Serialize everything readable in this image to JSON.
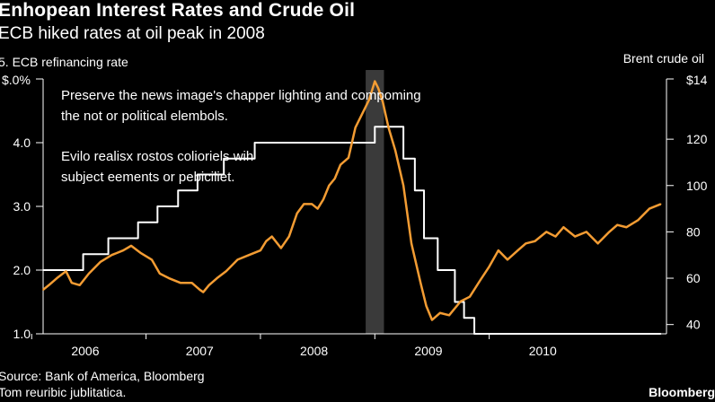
{
  "header": {
    "title": "Enhopean Interest Rates and Crude Oil",
    "subtitle": "ECB hiked rates at oil peak in 2008",
    "left_axis_label": "5. ECB refinancing rate",
    "right_axis_label": "Brent crude oil"
  },
  "annotations": {
    "line1a": "Preserve the news image's chapper lighting  and compoming",
    "line1b": "the not or political elembols.",
    "line2a": "Evilo realisx rostos colioriels wih",
    "line2b": "subject eements or pebiciliet."
  },
  "footer": {
    "source_line1": "Source: Bank of America, Bloomberg",
    "source_line2": "Tom reuribic jublitatica.",
    "brand": "Bloomberg"
  },
  "chart_data": {
    "type": "line",
    "title": "Enhopean Interest Rates and Crude Oil",
    "subtitle": "ECB hiked rates at oil peak in 2008",
    "x_ticks": [
      "2006",
      "2007",
      "2008",
      "2009",
      "2010"
    ],
    "xlim": [
      2005.6,
      2011.05
    ],
    "left_axis": {
      "label": "5. ECB refinancing rate",
      "ylim": [
        1.0,
        5.0
      ],
      "tick_values": [
        1.0,
        2.0,
        3.0,
        4.0
      ],
      "tick_labels": [
        "1.0",
        "2.0",
        "3.0",
        "4.0"
      ],
      "top_tick_label": "$.0%"
    },
    "right_axis": {
      "label": "Brent crude oil",
      "ylim": [
        36,
        146
      ],
      "tick_values": [
        40,
        60,
        80,
        100,
        120
      ],
      "tick_labels": [
        "40",
        "60",
        "80",
        "100",
        "120"
      ],
      "top_tick_label": "$14"
    },
    "shaded_period": {
      "start": 2008.42,
      "end": 2008.58,
      "color": "#3a3a3a"
    },
    "series": [
      {
        "name": "ECB refinancing rate",
        "axis": "left",
        "color": "#ffffff",
        "step": true,
        "x": [
          2005.6,
          2005.95,
          2006.17,
          2006.43,
          2006.6,
          2006.78,
          2006.95,
          2007.18,
          2007.45,
          2008.5,
          2008.75,
          2008.85,
          2008.93,
          2009.05,
          2009.2,
          2009.28,
          2009.37,
          2011.0
        ],
        "values": [
          2.0,
          2.25,
          2.5,
          2.75,
          3.0,
          3.25,
          3.5,
          3.75,
          4.0,
          4.25,
          3.75,
          3.25,
          2.5,
          2.0,
          1.5,
          1.25,
          1.0,
          1.0
        ]
      },
      {
        "name": "Brent crude oil",
        "axis": "right",
        "color": "#f39c33",
        "step": false,
        "x": [
          2005.6,
          2005.65,
          2005.72,
          2005.8,
          2005.85,
          2005.92,
          2006.0,
          2006.1,
          2006.2,
          2006.3,
          2006.37,
          2006.45,
          2006.55,
          2006.62,
          2006.7,
          2006.8,
          2006.9,
          2006.97,
          2007.0,
          2007.05,
          2007.12,
          2007.2,
          2007.3,
          2007.4,
          2007.5,
          2007.55,
          2007.6,
          2007.68,
          2007.75,
          2007.82,
          2007.88,
          2007.95,
          2008.0,
          2008.05,
          2008.1,
          2008.15,
          2008.2,
          2008.27,
          2008.33,
          2008.4,
          2008.45,
          2008.5,
          2008.53,
          2008.57,
          2008.62,
          2008.68,
          2008.75,
          2008.82,
          2008.9,
          2008.95,
          2009.0,
          2009.07,
          2009.15,
          2009.25,
          2009.33,
          2009.42,
          2009.5,
          2009.58,
          2009.66,
          2009.75,
          2009.82,
          2009.9,
          2010.0,
          2010.08,
          2010.15,
          2010.25,
          2010.35,
          2010.45,
          2010.55,
          2010.62,
          2010.7,
          2010.8,
          2010.9,
          2011.0
        ],
        "values": [
          55,
          57,
          60,
          63,
          58,
          57,
          62,
          67,
          70,
          72,
          74,
          71,
          68,
          62,
          60,
          58,
          58,
          55,
          54,
          57,
          60,
          63,
          68,
          70,
          72,
          76,
          78,
          73,
          78,
          88,
          92,
          92,
          90,
          94,
          100,
          103,
          109,
          112,
          125,
          132,
          137,
          145,
          142,
          136,
          125,
          115,
          100,
          75,
          58,
          48,
          42,
          45,
          44,
          50,
          52,
          59,
          65,
          72,
          68,
          72,
          75,
          76,
          80,
          78,
          82,
          78,
          80,
          75,
          80,
          83,
          82,
          85,
          90,
          92
        ]
      }
    ]
  }
}
